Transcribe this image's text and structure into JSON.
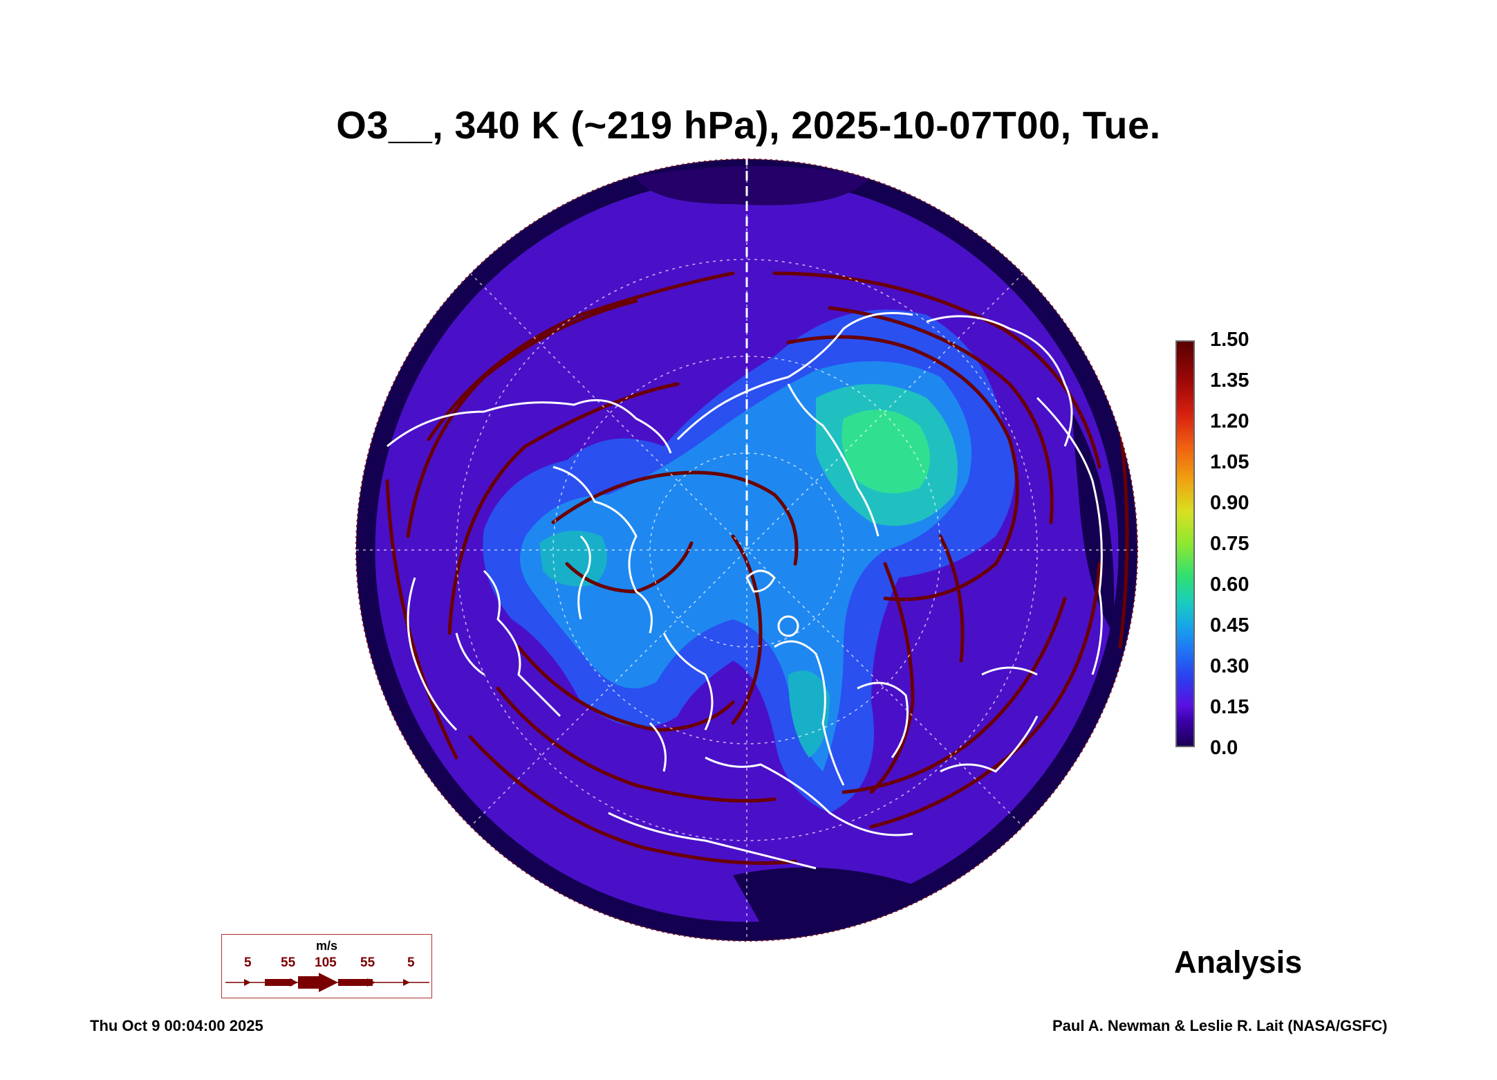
{
  "title": "O3__, 340 K (~219 hPa), 2025-10-07T00, Tue.",
  "colorbar": {
    "ticks": [
      "1.50",
      "1.35",
      "1.20",
      "1.05",
      "0.90",
      "0.75",
      "0.60",
      "0.45",
      "0.30",
      "0.15",
      "0.0"
    ]
  },
  "legend": {
    "unit": "m/s",
    "values": [
      "5",
      "55",
      "105",
      "55",
      "5"
    ]
  },
  "label_analysis": "Analysis",
  "footer_left": "Thu Oct  9 00:04:00 2025",
  "footer_right": "Paul A. Newman & Leslie R. Lait (NASA/GSFC)",
  "colors": {
    "background_field": "#4a10c8",
    "ozone_low": "#160050",
    "ozone_mid": "#1e78f5",
    "ozone_high": "#28d8a0",
    "streamline": "#6a0000",
    "coastline": "#ffffff"
  }
}
